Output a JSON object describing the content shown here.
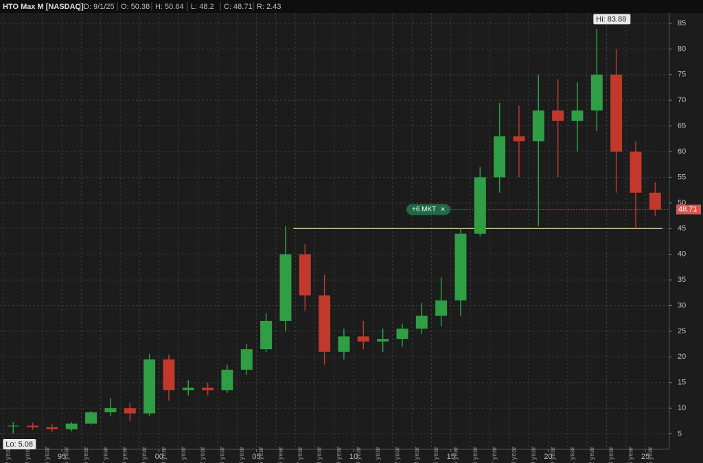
{
  "chart_data": {
    "type": "candlestick",
    "symbol": "HTO Max M [NASDAQ]",
    "info": [
      "D: 9/1/25",
      "O: 50.38",
      "H: 50.64",
      "L: 48.2",
      "C: 48.71",
      "R: 2.43"
    ],
    "x": [
      1992,
      1993,
      1994,
      1995,
      1996,
      1997,
      1998,
      1999,
      2000,
      2001,
      2002,
      2003,
      2004,
      2005,
      2006,
      2007,
      2008,
      2009,
      2010,
      2011,
      2012,
      2013,
      2014,
      2015,
      2016,
      2017,
      2018,
      2019,
      2020,
      2021,
      2022,
      2023,
      2024,
      2025
    ],
    "open": [
      6.5,
      6.6,
      6.3,
      5.9,
      7.0,
      9.2,
      10.0,
      9.0,
      19.5,
      13.5,
      14.0,
      13.5,
      17.5,
      21.5,
      27.0,
      40.0,
      32.0,
      21.0,
      24.0,
      23.0,
      23.5,
      25.5,
      28.0,
      31.0,
      44.0,
      55.0,
      63.0,
      62.0,
      68.0,
      66.0,
      68.0,
      75.0,
      60.0,
      52.0
    ],
    "high": [
      7.3,
      7.2,
      6.9,
      7.3,
      9.5,
      12.0,
      11.0,
      20.6,
      20.5,
      15.5,
      15.0,
      18.5,
      22.5,
      28.5,
      45.5,
      42.0,
      36.0,
      25.5,
      27.0,
      25.5,
      26.5,
      30.5,
      35.5,
      45.0,
      57.0,
      69.5,
      69.0,
      75.0,
      74.0,
      73.5,
      83.88,
      80.0,
      62.0,
      54.0
    ],
    "low": [
      5.08,
      5.8,
      5.4,
      5.5,
      6.8,
      8.5,
      7.5,
      8.5,
      11.5,
      12.5,
      12.5,
      13.0,
      16.5,
      21.0,
      25.0,
      29.0,
      18.5,
      19.5,
      21.5,
      21.0,
      22.0,
      24.5,
      26.0,
      28.0,
      43.5,
      52.0,
      55.0,
      45.5,
      55.0,
      60.0,
      64.0,
      52.0,
      45.0,
      47.5
    ],
    "close": [
      6.6,
      6.3,
      5.9,
      7.0,
      9.2,
      10.0,
      9.0,
      19.5,
      13.5,
      14.0,
      13.5,
      17.5,
      21.5,
      27.0,
      40.0,
      32.0,
      21.0,
      24.0,
      23.0,
      23.5,
      25.5,
      28.0,
      31.0,
      44.0,
      55.0,
      63.0,
      62.0,
      68.0,
      66.0,
      68.0,
      75.0,
      60.0,
      52.0,
      48.71
    ],
    "up_color": "#2f9e44",
    "down_color": "#c0392b",
    "xlim": [
      1991.82,
      2026.23
    ],
    "xticks": [
      {
        "value": 1995,
        "label": "95"
      },
      {
        "value": 2000,
        "label": "00"
      },
      {
        "value": 2005,
        "label": "05"
      },
      {
        "value": 2010,
        "label": "10"
      },
      {
        "value": 2015,
        "label": "15"
      },
      {
        "value": 2020,
        "label": "20"
      },
      {
        "value": 2025,
        "label": "25"
      }
    ],
    "year_markers": [
      {
        "value": 1992,
        "label": "1992 year"
      },
      {
        "value": 1993,
        "label": "1993 year"
      },
      {
        "value": 1994,
        "label": "1994 year"
      },
      {
        "value": 1995,
        "label": "1995 year"
      },
      {
        "value": 1996,
        "label": "1996 year"
      },
      {
        "value": 1997,
        "label": "1997 year"
      },
      {
        "value": 1998,
        "label": "1998 year"
      },
      {
        "value": 1999,
        "label": "1999 year"
      },
      {
        "value": 2000,
        "label": "2000 year"
      },
      {
        "value": 2001,
        "label": "2001 year"
      },
      {
        "value": 2002,
        "label": "2002 year"
      },
      {
        "value": 2003,
        "label": "2003 year"
      },
      {
        "value": 2004,
        "label": "2004 year"
      },
      {
        "value": 2005,
        "label": "2005 year"
      },
      {
        "value": 2006,
        "label": "2006 year"
      },
      {
        "value": 2007,
        "label": "2007 year"
      },
      {
        "value": 2008,
        "label": "2008 year"
      },
      {
        "value": 2009,
        "label": "2009 year"
      },
      {
        "value": 2010,
        "label": "2010 year"
      },
      {
        "value": 2011,
        "label": "2011 year"
      },
      {
        "value": 2012,
        "label": "2012 year"
      },
      {
        "value": 2013,
        "label": "2013 year"
      },
      {
        "value": 2014,
        "label": "2014 year"
      },
      {
        "value": 2015,
        "label": "2015 year"
      },
      {
        "value": 2016,
        "label": "2016 year"
      },
      {
        "value": 2017,
        "label": "2017 year"
      },
      {
        "value": 2018,
        "label": "2018 year"
      },
      {
        "value": 2019,
        "label": "2019 year"
      },
      {
        "value": 2020,
        "label": "2020 year"
      },
      {
        "value": 2021,
        "label": "2021 year"
      },
      {
        "value": 2022,
        "label": "2022 year"
      },
      {
        "value": 2023,
        "label": "2023 year"
      },
      {
        "value": 2024,
        "label": "2024 year"
      },
      {
        "value": 2025,
        "label": "2025 year"
      }
    ],
    "ylim": [
      2,
      87
    ],
    "yticks": [
      5,
      10,
      15,
      20,
      25,
      30,
      35,
      40,
      45,
      50,
      55,
      60,
      65,
      70,
      75,
      80,
      85
    ],
    "grid": true,
    "hi_label": "Hi: 83.88",
    "hi_value": 83.88,
    "hi_x": 2022,
    "lo_label": "Lo: 5.08",
    "lo_value": 5.08,
    "lo_x": 1992,
    "last_price": 48.71,
    "order_label": "+6 MKT",
    "order_close": "×",
    "support_line": 45
  }
}
